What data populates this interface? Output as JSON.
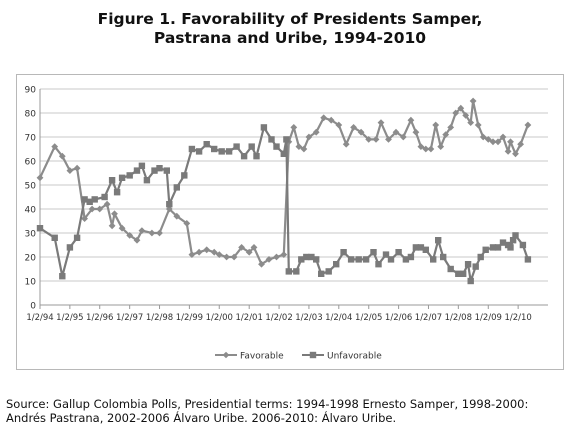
{
  "title_line1": "Figure 1. Favorability of Presidents Samper,",
  "title_line2": "Pastrana and Uribe, 1994-2010",
  "source_line1": "Source: Gallup Colombia Polls, Presidential terms: 1994-1998 Ernesto Samper, 1998-2000:",
  "source_line2": "Andrés Pastrana, 2002-2006 Álvaro Uribe. 2006-2010: Álvaro Uribe.",
  "colors": {
    "favorable": "#8c8c8c",
    "unfavorable": "#7a7a7a",
    "grid": "#c8c8c8"
  },
  "chart_data": {
    "type": "line",
    "title": "Figure 1. Favorability of Presidents Samper, Pastrana and Uribe, 1994-2010",
    "xlabel": "",
    "ylabel": "",
    "ylim": [
      0,
      90
    ],
    "yticks": [
      0,
      10,
      20,
      30,
      40,
      50,
      60,
      70,
      80,
      90
    ],
    "xticks": [
      "1/2/94",
      "1/2/95",
      "1/2/96",
      "1/2/97",
      "1/2/98",
      "1/2/99",
      "1/2/00",
      "1/2/01",
      "1/2/02",
      "1/2/03",
      "1/2/04",
      "1/2/05",
      "1/2/06",
      "1/2/07",
      "1/2/08",
      "1/2/09",
      "1/2/10"
    ],
    "xlim": [
      "1/2/94",
      "1/2/11"
    ],
    "grid": "horizontal",
    "legend": "bottom-center",
    "series": [
      {
        "name": "Favorable",
        "marker": "diamond",
        "points": [
          [
            "1/2/94",
            53
          ],
          [
            "7/1/94",
            66
          ],
          [
            "10/1/94",
            62
          ],
          [
            "1/2/95",
            56
          ],
          [
            "4/1/95",
            57
          ],
          [
            "7/1/95",
            36
          ],
          [
            "10/1/95",
            40
          ],
          [
            "1/2/96",
            40
          ],
          [
            "4/1/96",
            42
          ],
          [
            "6/1/96",
            33
          ],
          [
            "7/1/96",
            38
          ],
          [
            "10/1/96",
            32
          ],
          [
            "1/2/97",
            29
          ],
          [
            "4/1/97",
            27
          ],
          [
            "6/1/97",
            31
          ],
          [
            "10/1/97",
            30
          ],
          [
            "1/2/98",
            30
          ],
          [
            "5/1/98",
            40
          ],
          [
            "8/1/98",
            37
          ],
          [
            "12/1/98",
            34
          ],
          [
            "2/1/99",
            21
          ],
          [
            "5/1/99",
            22
          ],
          [
            "8/1/99",
            23
          ],
          [
            "11/1/99",
            22
          ],
          [
            "1/2/00",
            21
          ],
          [
            "4/1/00",
            20
          ],
          [
            "7/1/00",
            20
          ],
          [
            "10/1/00",
            24
          ],
          [
            "1/2/01",
            22
          ],
          [
            "3/1/01",
            24
          ],
          [
            "6/1/01",
            17
          ],
          [
            "9/1/01",
            19
          ],
          [
            "12/1/01",
            20
          ],
          [
            "3/1/02",
            21
          ],
          [
            "5/1/02",
            68
          ],
          [
            "7/1/02",
            74
          ],
          [
            "9/1/02",
            66
          ],
          [
            "11/1/02",
            65
          ],
          [
            "1/2/03",
            70
          ],
          [
            "4/1/03",
            72
          ],
          [
            "7/1/03",
            78
          ],
          [
            "10/1/03",
            77
          ],
          [
            "1/2/04",
            75
          ],
          [
            "4/1/04",
            67
          ],
          [
            "7/1/04",
            74
          ],
          [
            "10/1/04",
            72
          ],
          [
            "1/2/05",
            69
          ],
          [
            "4/1/05",
            69
          ],
          [
            "6/1/05",
            76
          ],
          [
            "9/1/05",
            69
          ],
          [
            "12/1/05",
            72
          ],
          [
            "3/1/06",
            70
          ],
          [
            "6/1/06",
            77
          ],
          [
            "8/1/06",
            72
          ],
          [
            "10/1/06",
            66
          ],
          [
            "12/1/06",
            65
          ],
          [
            "2/1/07",
            65
          ],
          [
            "4/1/07",
            75
          ],
          [
            "6/1/07",
            66
          ],
          [
            "8/1/07",
            71
          ],
          [
            "10/1/07",
            74
          ],
          [
            "12/1/07",
            80
          ],
          [
            "2/1/08",
            82
          ],
          [
            "4/1/08",
            79
          ],
          [
            "6/1/08",
            76
          ],
          [
            "7/1/08",
            85
          ],
          [
            "9/1/08",
            75
          ],
          [
            "11/1/08",
            70
          ],
          [
            "1/2/09",
            69
          ],
          [
            "3/1/09",
            68
          ],
          [
            "5/1/09",
            68
          ],
          [
            "7/1/09",
            70
          ],
          [
            "9/1/09",
            64
          ],
          [
            "10/1/09",
            68
          ],
          [
            "12/1/09",
            63
          ],
          [
            "2/1/10",
            67
          ],
          [
            "5/1/10",
            75
          ]
        ]
      },
      {
        "name": "Unfavorable",
        "marker": "square",
        "points": [
          [
            "1/2/94",
            32
          ],
          [
            "7/1/94",
            28
          ],
          [
            "10/1/94",
            12
          ],
          [
            "1/2/95",
            24
          ],
          [
            "4/1/95",
            28
          ],
          [
            "7/1/95",
            44
          ],
          [
            "9/1/95",
            43
          ],
          [
            "11/1/95",
            44
          ],
          [
            "3/1/96",
            45
          ],
          [
            "6/1/96",
            52
          ],
          [
            "8/1/96",
            47
          ],
          [
            "10/1/96",
            53
          ],
          [
            "1/2/97",
            54
          ],
          [
            "4/1/97",
            56
          ],
          [
            "6/1/97",
            58
          ],
          [
            "8/1/97",
            52
          ],
          [
            "11/1/97",
            56
          ],
          [
            "1/2/98",
            57
          ],
          [
            "4/1/98",
            56
          ],
          [
            "5/1/98",
            42
          ],
          [
            "8/1/98",
            49
          ],
          [
            "11/1/98",
            54
          ],
          [
            "2/1/99",
            65
          ],
          [
            "5/1/99",
            64
          ],
          [
            "8/1/99",
            67
          ],
          [
            "11/1/99",
            65
          ],
          [
            "2/1/00",
            64
          ],
          [
            "5/1/00",
            64
          ],
          [
            "8/1/00",
            66
          ],
          [
            "11/1/00",
            62
          ],
          [
            "2/1/01",
            66
          ],
          [
            "4/1/01",
            62
          ],
          [
            "7/1/01",
            74
          ],
          [
            "10/1/01",
            69
          ],
          [
            "12/1/01",
            66
          ],
          [
            "3/1/02",
            63
          ],
          [
            "4/1/02",
            69
          ],
          [
            "5/1/02",
            14
          ],
          [
            "8/1/02",
            14
          ],
          [
            "10/1/02",
            19
          ],
          [
            "12/1/02",
            20
          ],
          [
            "2/1/03",
            20
          ],
          [
            "4/1/03",
            19
          ],
          [
            "6/1/03",
            13
          ],
          [
            "9/1/03",
            14
          ],
          [
            "12/1/03",
            17
          ],
          [
            "3/1/04",
            22
          ],
          [
            "6/1/04",
            19
          ],
          [
            "9/1/04",
            19
          ],
          [
            "12/1/04",
            19
          ],
          [
            "3/1/05",
            22
          ],
          [
            "5/1/05",
            17
          ],
          [
            "8/1/05",
            21
          ],
          [
            "10/1/05",
            19
          ],
          [
            "1/2/06",
            22
          ],
          [
            "4/1/06",
            19
          ],
          [
            "6/1/06",
            20
          ],
          [
            "8/1/06",
            24
          ],
          [
            "10/1/06",
            24
          ],
          [
            "12/1/06",
            23
          ],
          [
            "3/1/07",
            19
          ],
          [
            "5/1/07",
            27
          ],
          [
            "7/1/07",
            20
          ],
          [
            "10/1/07",
            15
          ],
          [
            "1/2/08",
            13
          ],
          [
            "3/1/08",
            13
          ],
          [
            "5/1/08",
            17
          ],
          [
            "6/1/08",
            10
          ],
          [
            "8/1/08",
            16
          ],
          [
            "10/1/08",
            20
          ],
          [
            "12/1/08",
            23
          ],
          [
            "3/1/09",
            24
          ],
          [
            "5/1/09",
            24
          ],
          [
            "7/1/09",
            26
          ],
          [
            "9/1/09",
            25
          ],
          [
            "10/1/09",
            24
          ],
          [
            "11/1/09",
            27
          ],
          [
            "12/1/09",
            29
          ],
          [
            "3/1/10",
            25
          ],
          [
            "5/1/10",
            19
          ]
        ]
      }
    ]
  }
}
